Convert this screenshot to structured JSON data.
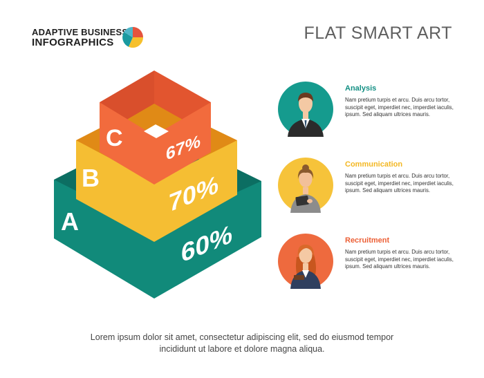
{
  "brand": {
    "line1": "ADAPTIVE BUSINESS",
    "line2": "INFOGRAPHICS",
    "logo_colors": [
      "#e5533d",
      "#f6c02c",
      "#1a9aa0",
      "#4db6c8"
    ]
  },
  "title": "FLAT SMART ART",
  "pyramid": {
    "levels": [
      {
        "letter": "A",
        "percent": "60%",
        "color": "#118a7a"
      },
      {
        "letter": "B",
        "percent": "70%",
        "color": "#f5be33"
      },
      {
        "letter": "C",
        "percent": "67%",
        "color": "#f26b3d"
      }
    ]
  },
  "people": [
    {
      "title": "Analysis",
      "title_color": "#128f83",
      "circle_color": "#159b8e",
      "icon": "businessman-icon",
      "desc": "Nam pretium turpis et arcu. Duis arcu tortor, suscipit eget, imperdiet nec, imperdiet iaculis, ipsum. Sed aliquam ultrices mauris."
    },
    {
      "title": "Communication",
      "title_color": "#f3b722",
      "circle_color": "#f6c33a",
      "icon": "businesswoman-tablet-icon",
      "desc": "Nam pretium turpis et arcu. Duis arcu tortor, suscipit eget, imperdiet nec, imperdiet iaculis, ipsum. Sed aliquam ultrices mauris."
    },
    {
      "title": "Recruitment",
      "title_color": "#ec5f35",
      "circle_color": "#ee6a3e",
      "icon": "businesswoman-notebook-icon",
      "desc": "Nam pretium turpis et arcu. Duis arcu tortor, suscipit eget, imperdiet nec, imperdiet iaculis, ipsum. Sed aliquam ultrices mauris."
    }
  ],
  "caption": {
    "line1": "Lorem ipsum dolor sit amet, consectetur adipiscing elit, sed do eiusmod tempor",
    "line2": "incididunt ut labore et dolore magna aliqua."
  }
}
